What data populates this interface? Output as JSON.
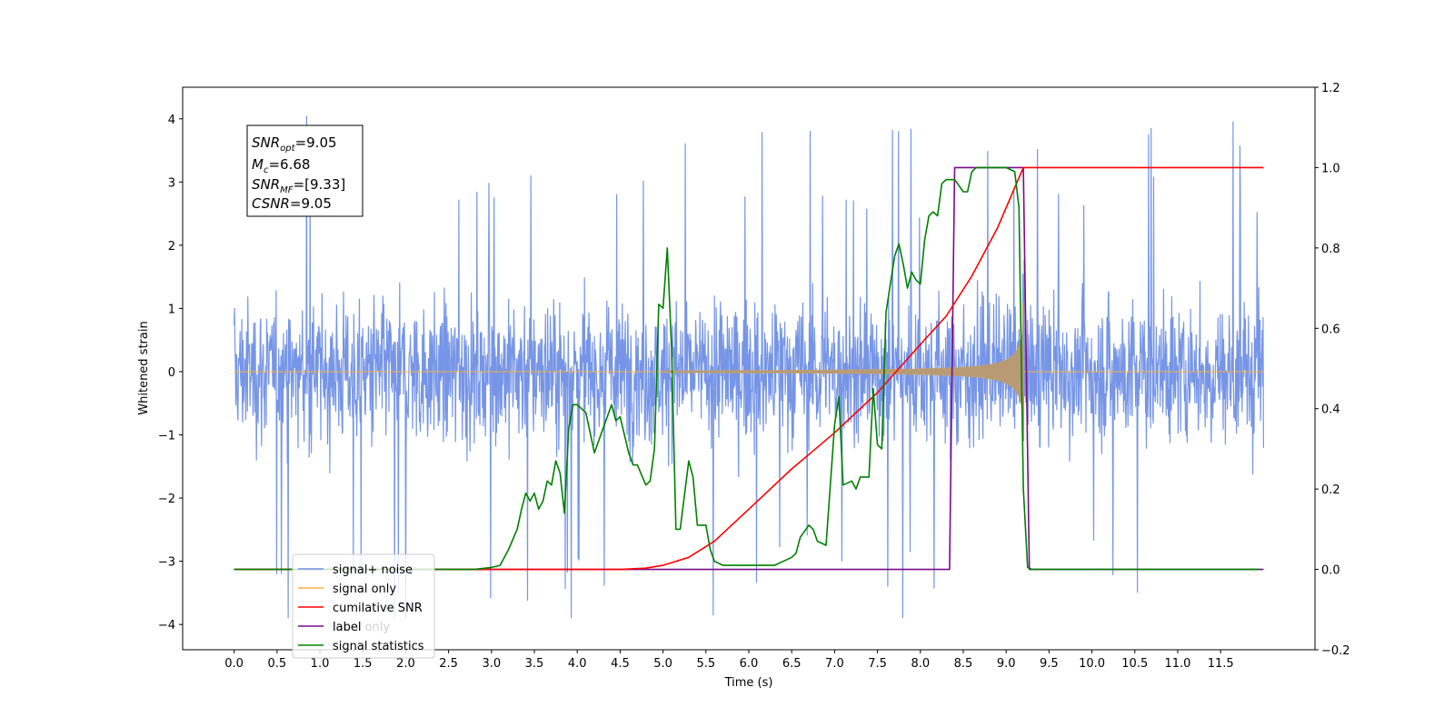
{
  "chart_data": {
    "type": "line",
    "xlabel": "Time (s)",
    "ylabel": "Whitened strain",
    "xlim": [
      -0.6,
      12.6
    ],
    "ylim": [
      -4.4,
      4.5
    ],
    "y2lim": [
      -0.2,
      1.2
    ],
    "grid": false,
    "legend_position": "bottom-left",
    "x_ticks": [
      "0.0",
      "0.5",
      "1.0",
      "1.5",
      "2.0",
      "2.5",
      "3.0",
      "3.5",
      "4.0",
      "4.5",
      "5.0",
      "5.5",
      "6.0",
      "6.5",
      "7.0",
      "7.5",
      "8.0",
      "8.5",
      "9.0",
      "9.5",
      "10.0",
      "10.5",
      "11.0",
      "11.5"
    ],
    "y_ticks": [
      "4",
      "3",
      "2",
      "1",
      "0",
      "−1",
      "−2",
      "−3",
      "−4"
    ],
    "y2_ticks": [
      "1.2",
      "1.0",
      "0.8",
      "0.6",
      "0.4",
      "0.2",
      "0.0",
      "−0.2"
    ],
    "annotation": {
      "lines": [
        {
          "name": "SNR",
          "sub": "opt",
          "value": "=9.05"
        },
        {
          "name": "M",
          "sub": "c",
          "value": "=6.68"
        },
        {
          "name": "SNR",
          "sub": "MF",
          "value": "=[9.33]"
        },
        {
          "name": "CSNR",
          "sub": "",
          "value": "=9.05"
        }
      ]
    },
    "series": [
      {
        "name": "signal+ noise",
        "color": "#6f8fe6",
        "axis": "left",
        "kind": "noise",
        "x_range": [
          0.0,
          12.0
        ],
        "envelope": 2.4,
        "peak_max": 4.1,
        "peak_min": -3.9
      },
      {
        "name": "signal only",
        "color": "#f5b041",
        "axis": "left",
        "kind": "chirp",
        "x_range": [
          5.0,
          9.2
        ],
        "amplitude_at_peak": 0.7
      },
      {
        "name": "cumilative SNR",
        "color": "#ff0000",
        "axis": "right",
        "x": [
          0.0,
          4.5,
          4.8,
          5.0,
          5.3,
          5.6,
          6.0,
          6.5,
          7.0,
          7.5,
          8.0,
          8.3,
          8.6,
          8.9,
          9.1,
          9.2,
          11.5,
          12.0
        ],
        "y": [
          0.0,
          0.0,
          0.003,
          0.01,
          0.03,
          0.07,
          0.15,
          0.25,
          0.34,
          0.44,
          0.56,
          0.63,
          0.73,
          0.85,
          0.95,
          1.0,
          1.0,
          1.0
        ]
      },
      {
        "name": "label",
        "color": "#7b0a8a",
        "axis": "right",
        "x": [
          0.0,
          8.34,
          8.4,
          9.2,
          9.27,
          12.0
        ],
        "y": [
          0.0,
          0.0,
          1.0,
          1.0,
          0.0,
          0.0
        ]
      },
      {
        "name": "label only",
        "color": "#7b0a8a",
        "axis": "right",
        "legend_only": true
      },
      {
        "name": "signal statistics",
        "color": "#008000",
        "axis": "right",
        "x": [
          0.0,
          2.0,
          2.8,
          3.0,
          3.1,
          3.2,
          3.3,
          3.35,
          3.4,
          3.45,
          3.5,
          3.55,
          3.6,
          3.65,
          3.7,
          3.75,
          3.8,
          3.85,
          3.9,
          3.95,
          4.0,
          4.1,
          4.2,
          4.3,
          4.4,
          4.45,
          4.5,
          4.6,
          4.65,
          4.7,
          4.8,
          4.85,
          4.9,
          4.95,
          5.0,
          5.05,
          5.1,
          5.15,
          5.2,
          5.3,
          5.35,
          5.4,
          5.5,
          5.55,
          5.6,
          5.7,
          5.8,
          6.0,
          6.3,
          6.4,
          6.5,
          6.55,
          6.6,
          6.7,
          6.75,
          6.8,
          6.9,
          6.95,
          7.0,
          7.05,
          7.1,
          7.2,
          7.25,
          7.3,
          7.4,
          7.45,
          7.5,
          7.55,
          7.6,
          7.7,
          7.75,
          7.8,
          7.85,
          7.9,
          7.95,
          8.0,
          8.05,
          8.1,
          8.15,
          8.2,
          8.25,
          8.3,
          8.35,
          8.4,
          8.5,
          8.55,
          8.6,
          8.65,
          8.7,
          8.75,
          8.8,
          9.0,
          9.1,
          9.15,
          9.2,
          9.25,
          9.3,
          9.4,
          11.5,
          11.95
        ],
        "y": [
          0.0,
          0.0,
          0.0,
          0.005,
          0.01,
          0.05,
          0.1,
          0.15,
          0.19,
          0.17,
          0.19,
          0.15,
          0.17,
          0.22,
          0.21,
          0.27,
          0.24,
          0.14,
          0.35,
          0.41,
          0.41,
          0.39,
          0.29,
          0.35,
          0.41,
          0.37,
          0.38,
          0.29,
          0.26,
          0.26,
          0.21,
          0.22,
          0.3,
          0.66,
          0.65,
          0.8,
          0.55,
          0.1,
          0.1,
          0.27,
          0.23,
          0.11,
          0.11,
          0.05,
          0.02,
          0.01,
          0.01,
          0.01,
          0.01,
          0.02,
          0.03,
          0.04,
          0.08,
          0.11,
          0.1,
          0.07,
          0.06,
          0.21,
          0.36,
          0.43,
          0.21,
          0.22,
          0.2,
          0.23,
          0.23,
          0.45,
          0.31,
          0.3,
          0.64,
          0.78,
          0.81,
          0.76,
          0.7,
          0.74,
          0.72,
          0.71,
          0.82,
          0.88,
          0.89,
          0.88,
          0.96,
          0.97,
          0.97,
          0.97,
          0.94,
          0.94,
          0.99,
          1.0,
          1.0,
          1.0,
          1.0,
          1.0,
          0.99,
          0.9,
          0.2,
          0.005,
          0.0,
          0.0,
          0.0,
          0.0
        ]
      }
    ]
  }
}
